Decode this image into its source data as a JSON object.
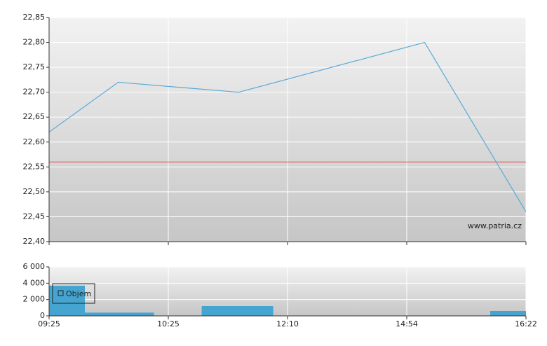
{
  "chart_data": [
    {
      "type": "line",
      "x": [
        0,
        0.58,
        1.59,
        3.15,
        4
      ],
      "series": [
        {
          "color": "#5aaad8",
          "values": [
            22.62,
            22.72,
            22.7,
            22.8,
            22.46
          ]
        }
      ],
      "reference_line": {
        "value": 22.56,
        "color": "#e05050"
      },
      "xlim": [
        0,
        4
      ],
      "xticks": [
        0,
        1,
        2,
        3,
        4
      ],
      "ylim": [
        22.4,
        22.85
      ],
      "yticks": [
        {
          "value": 22.4,
          "label": "22,40"
        },
        {
          "value": 22.45,
          "label": "22,45"
        },
        {
          "value": 22.5,
          "label": "22,50"
        },
        {
          "value": 22.55,
          "label": "22,55"
        },
        {
          "value": 22.6,
          "label": "22,60"
        },
        {
          "value": 22.65,
          "label": "22,65"
        },
        {
          "value": 22.7,
          "label": "22,70"
        },
        {
          "value": 22.75,
          "label": "22,75"
        },
        {
          "value": 22.8,
          "label": "22,80"
        },
        {
          "value": 22.85,
          "label": "22,85"
        }
      ],
      "grid": true,
      "annotation": "www.patria.cz"
    },
    {
      "type": "bar",
      "x_start": [
        0,
        0.3,
        1.28,
        3.7
      ],
      "x_end": [
        0.3,
        0.88,
        1.88,
        4
      ],
      "series": [
        {
          "name": "Objem",
          "color": "#45a5d0",
          "values": [
            3700,
            400,
            1200,
            600
          ]
        }
      ],
      "xlim": [
        0,
        4
      ],
      "xticks": [
        {
          "value": 0,
          "label": "09:25"
        },
        {
          "value": 1,
          "label": "10:25"
        },
        {
          "value": 2,
          "label": "12:10"
        },
        {
          "value": 3,
          "label": "14:54"
        },
        {
          "value": 4,
          "label": "16:22"
        }
      ],
      "ylim": [
        0,
        6000
      ],
      "yticks": [
        0,
        {
          "value": 2000,
          "label": "2 000"
        },
        {
          "value": 4000,
          "label": "4 000"
        },
        {
          "value": 6000,
          "label": "6 000"
        }
      ],
      "grid": true,
      "legend": "top-left"
    }
  ]
}
